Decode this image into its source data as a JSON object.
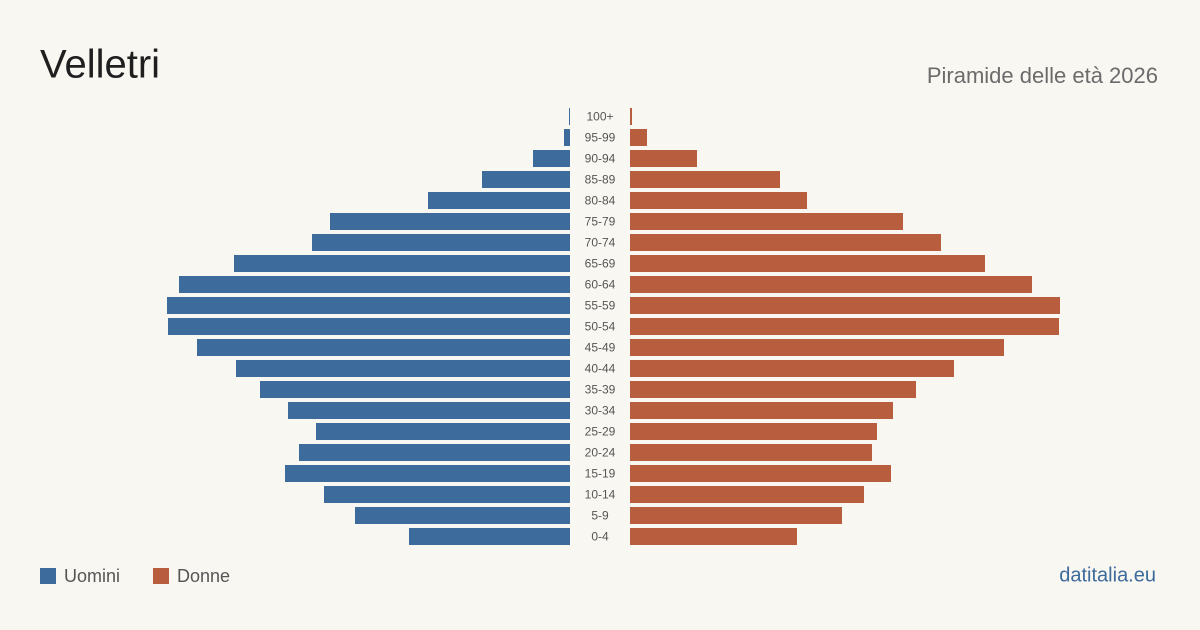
{
  "chart_data": {
    "type": "pyramid",
    "title": "Velletri",
    "subtitle": "Piramide delle età 2026",
    "source": "datitalia.eu",
    "categories": [
      "100+",
      "95-99",
      "90-94",
      "85-89",
      "80-84",
      "75-79",
      "70-74",
      "65-69",
      "60-64",
      "55-59",
      "50-54",
      "45-49",
      "40-44",
      "35-39",
      "30-34",
      "25-29",
      "20-24",
      "15-19",
      "10-14",
      "5-9",
      "0-4"
    ],
    "series": [
      {
        "name": "Uomini",
        "color": "#3d6b9c",
        "values": [
          1,
          6,
          37,
          88,
          142,
          240,
          258,
          336,
          391,
          403,
          402,
          373,
          334,
          310,
          282,
          254,
          271,
          285,
          246,
          215,
          161
        ]
      },
      {
        "name": "Donne",
        "color": "#b85d3d",
        "values": [
          2,
          17,
          67,
          150,
          177,
          273,
          311,
          355,
          402,
          430,
          429,
          374,
          324,
          286,
          263,
          247,
          242,
          261,
          234,
          212,
          167
        ]
      }
    ]
  }
}
